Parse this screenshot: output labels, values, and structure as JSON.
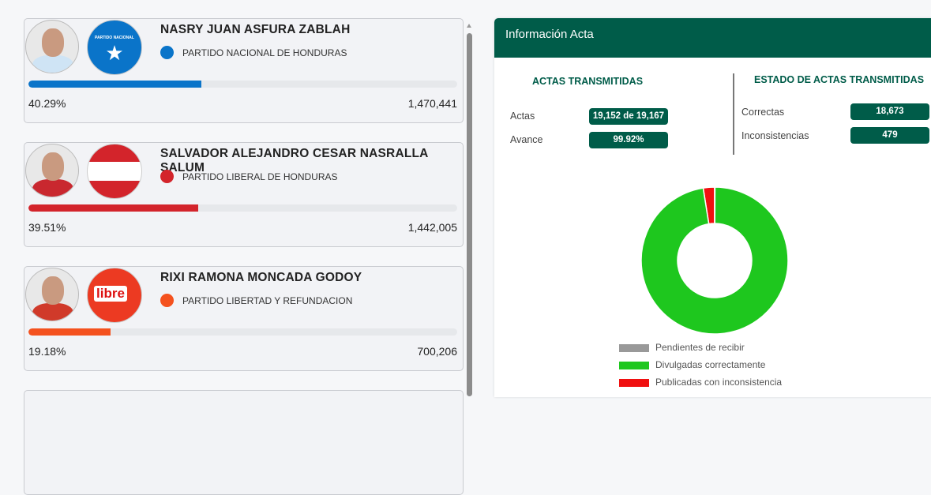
{
  "candidates": [
    {
      "name": "NASRY JUAN ASFURA ZABLAH",
      "party": "PARTIDO NACIONAL DE HONDURAS",
      "logo_text": "PARTIDO NACIONAL",
      "color": "#0a74c9",
      "percent": "40.29%",
      "percent_value": 40.29,
      "votes": "1,470,441"
    },
    {
      "name": "SALVADOR ALEJANDRO CESAR NASRALLA SALUM",
      "party": "PARTIDO LIBERAL DE HONDURAS",
      "logo_text": "",
      "color": "#d3242b",
      "percent": "39.51%",
      "percent_value": 39.51,
      "votes": "1,442,005"
    },
    {
      "name": "RIXI RAMONA MONCADA GODOY",
      "party": "PARTIDO LIBERTAD Y REFUNDACION",
      "logo_text": "libre",
      "color": "#f4511e",
      "percent": "19.18%",
      "percent_value": 19.18,
      "votes": "700,206"
    }
  ],
  "panel": {
    "title": "Información Acta",
    "transmitidas": {
      "heading": "ACTAS TRANSMITIDAS",
      "actas_label": "Actas",
      "actas_value": "19,152 de 19,167",
      "avance_label": "Avance",
      "avance_value": "99.92%"
    },
    "estado": {
      "heading": "ESTADO DE ACTAS TRANSMITIDAS",
      "correctas_label": "Correctas",
      "correctas_value": "18,673",
      "inconsistencias_label": "Inconsistencias",
      "inconsistencias_value": "479"
    }
  },
  "chart_data": {
    "type": "pie",
    "donut": true,
    "legend_position": "bottom",
    "series": [
      {
        "name": "Pendientes de recibir",
        "value": 15,
        "color": "#999999"
      },
      {
        "name": "Divulgadas correctamente",
        "value": 18673,
        "color": "#1ec71e"
      },
      {
        "name": "Publicadas con inconsistencia",
        "value": 479,
        "color": "#f01010"
      }
    ]
  }
}
